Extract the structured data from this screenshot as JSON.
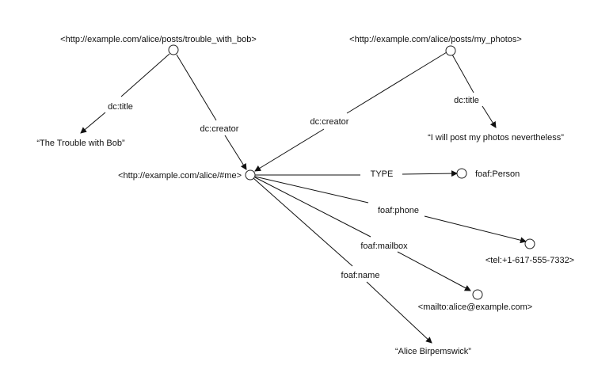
{
  "nodes": {
    "post_bob": "<http://example.com/alice/posts/trouble_with_bob>",
    "post_photos": "<http://example.com/alice/posts/my_photos>",
    "me": "<http://example.com/alice/#me>",
    "person": "foaf:Person",
    "phone": "<tel:+1-617-555-7332>",
    "mailbox": "<mailto:alice@example.com>"
  },
  "literals": {
    "bob_title": "“The Trouble with Bob”",
    "photos_title": "“I will post my photos nevertheless”",
    "name": "“Alice Birpemswick”"
  },
  "edges": {
    "bob_title": "dc:title",
    "bob_creator": "dc:creator",
    "photos_creator": "dc:creator",
    "photos_title": "dc:title",
    "type": "TYPE",
    "phone": "foaf:phone",
    "mailbox": "foaf:mailbox",
    "name": "foaf:name"
  }
}
